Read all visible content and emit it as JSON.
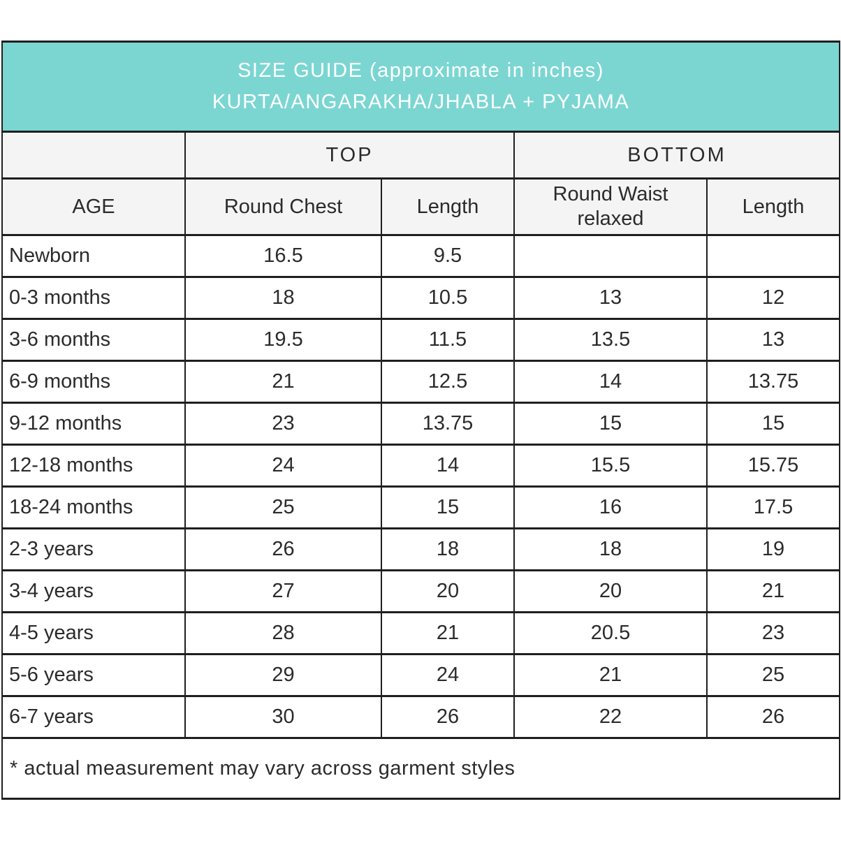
{
  "banner": {
    "line1": "SIZE GUIDE (approximate in inches)",
    "line2": "KURTA/ANGARAKHA/JHABLA + PYJAMA",
    "background_color": "#7bd6d2",
    "text_color": "#ffffff"
  },
  "table": {
    "group_headers": {
      "top": "TOP",
      "bottom": "BOTTOM"
    },
    "columns": {
      "age": "AGE",
      "round_chest": "Round Chest",
      "top_length": "Length",
      "round_waist": "Round Waist relaxed",
      "bottom_length": "Length"
    },
    "rows": [
      {
        "age": "Newborn",
        "round_chest": "16.5",
        "top_length": "9.5",
        "round_waist": "",
        "bottom_length": ""
      },
      {
        "age": "0-3 months",
        "round_chest": "18",
        "top_length": "10.5",
        "round_waist": "13",
        "bottom_length": "12"
      },
      {
        "age": "3-6 months",
        "round_chest": "19.5",
        "top_length": "11.5",
        "round_waist": "13.5",
        "bottom_length": "13"
      },
      {
        "age": "6-9 months",
        "round_chest": "21",
        "top_length": "12.5",
        "round_waist": "14",
        "bottom_length": "13.75"
      },
      {
        "age": "9-12 months",
        "round_chest": "23",
        "top_length": "13.75",
        "round_waist": "15",
        "bottom_length": "15"
      },
      {
        "age": "12-18 months",
        "round_chest": "24",
        "top_length": "14",
        "round_waist": "15.5",
        "bottom_length": "15.75"
      },
      {
        "age": "18-24 months",
        "round_chest": "25",
        "top_length": "15",
        "round_waist": "16",
        "bottom_length": "17.5"
      },
      {
        "age": "2-3 years",
        "round_chest": "26",
        "top_length": "18",
        "round_waist": "18",
        "bottom_length": "19"
      },
      {
        "age": "3-4 years",
        "round_chest": "27",
        "top_length": "20",
        "round_waist": "20",
        "bottom_length": "21"
      },
      {
        "age": "4-5 years",
        "round_chest": "28",
        "top_length": "21",
        "round_waist": "20.5",
        "bottom_length": "23"
      },
      {
        "age": "5-6 years",
        "round_chest": "29",
        "top_length": "24",
        "round_waist": "21",
        "bottom_length": "25"
      },
      {
        "age": "6-7 years",
        "round_chest": "30",
        "top_length": "26",
        "round_waist": "22",
        "bottom_length": "26"
      }
    ],
    "footnote": "* actual measurement may vary across garment styles"
  },
  "colors": {
    "accent_teal": "#7bd6d2",
    "header_gray": "#f4f4f4",
    "border_dark": "#1f1f1f",
    "text_dark": "#2b2b2b"
  }
}
